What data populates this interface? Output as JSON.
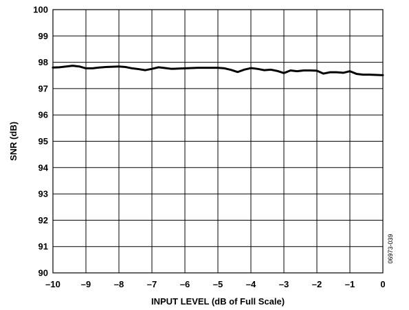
{
  "chart_data": {
    "type": "line",
    "title": "",
    "xlabel": "INPUT LEVEL (dB of Full Scale)",
    "ylabel": "SNR (dB)",
    "xlim": [
      -10,
      0
    ],
    "ylim": [
      90,
      100
    ],
    "x_ticks": [
      -10,
      -9,
      -8,
      -7,
      -6,
      -5,
      -4,
      -3,
      -2,
      -1,
      0
    ],
    "x_tick_labels": [
      "–10",
      "–9",
      "–8",
      "–7",
      "–6",
      "–5",
      "–4",
      "–3",
      "–2",
      "–1",
      "0"
    ],
    "y_ticks": [
      90,
      91,
      92,
      93,
      94,
      95,
      96,
      97,
      98,
      99,
      100
    ],
    "y_tick_labels": [
      "90",
      "91",
      "92",
      "93",
      "94",
      "95",
      "96",
      "97",
      "98",
      "99",
      "100"
    ],
    "grid": true,
    "series": [
      {
        "name": "",
        "color": "#000000",
        "x": [
          -10,
          -9.8,
          -9.6,
          -9.4,
          -9.2,
          -9.0,
          -8.8,
          -8.6,
          -8.4,
          -8.2,
          -8.0,
          -7.8,
          -7.6,
          -7.4,
          -7.2,
          -7.0,
          -6.8,
          -6.6,
          -6.4,
          -6.2,
          -6.0,
          -5.8,
          -5.6,
          -5.4,
          -5.2,
          -5.0,
          -4.8,
          -4.6,
          -4.4,
          -4.2,
          -4.0,
          -3.8,
          -3.6,
          -3.4,
          -3.2,
          -3.0,
          -2.8,
          -2.6,
          -2.4,
          -2.2,
          -2.0,
          -1.8,
          -1.6,
          -1.4,
          -1.2,
          -1.0,
          -0.8,
          -0.6,
          -0.4,
          -0.2,
          0.0
        ],
        "y": [
          97.8,
          97.81,
          97.84,
          97.87,
          97.84,
          97.77,
          97.77,
          97.8,
          97.82,
          97.83,
          97.84,
          97.82,
          97.77,
          97.74,
          97.7,
          97.75,
          97.81,
          97.78,
          97.75,
          97.76,
          97.77,
          97.78,
          97.79,
          97.79,
          97.79,
          97.79,
          97.77,
          97.71,
          97.63,
          97.72,
          97.78,
          97.75,
          97.7,
          97.72,
          97.67,
          97.59,
          97.69,
          97.66,
          97.69,
          97.69,
          97.68,
          97.57,
          97.62,
          97.62,
          97.6,
          97.66,
          97.56,
          97.53,
          97.53,
          97.52,
          97.51
        ]
      }
    ]
  },
  "figure_id": "06973-039"
}
